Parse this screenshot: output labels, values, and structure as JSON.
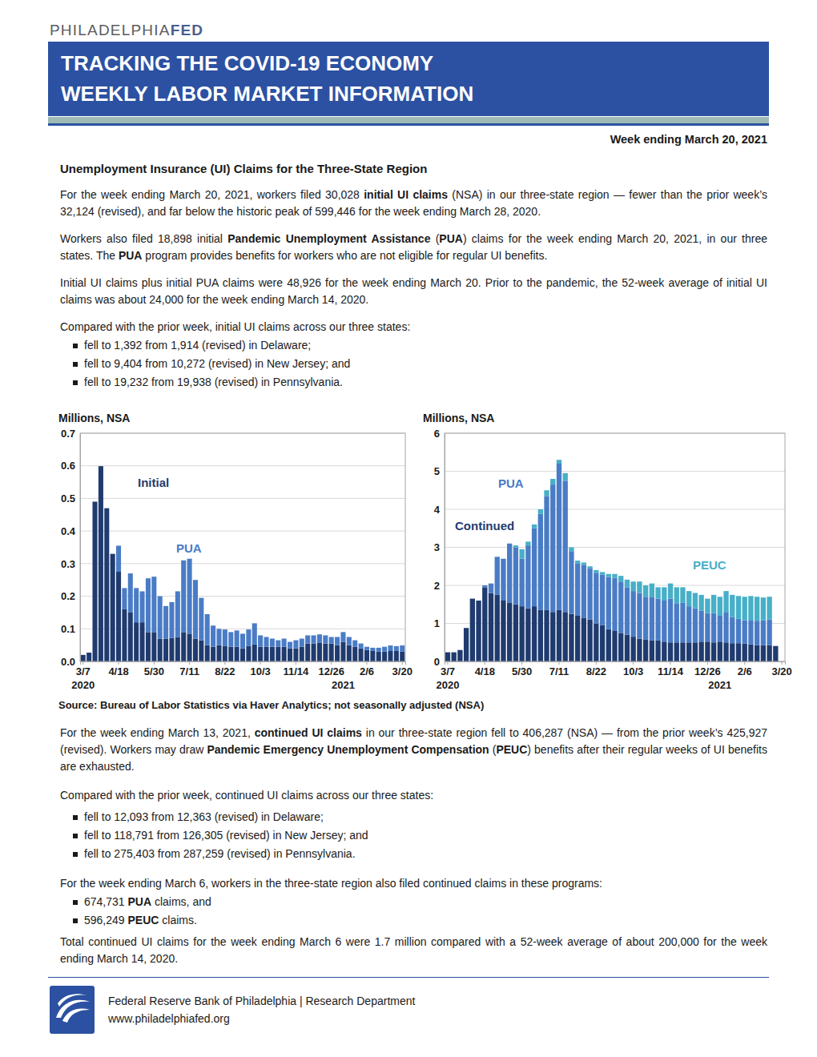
{
  "header": {
    "brand": [
      "PHILADELPHIA",
      "FED"
    ],
    "title_lines": [
      "TRACKING THE COVID-19 ECONOMY",
      "WEEKLY LABOR MARKET INFORMATION"
    ],
    "date": "Week ending March 20, 2021"
  },
  "heading": "Unemployment Insurance (UI) Claims for the Three-State Region",
  "content_top": [
    {
      "runs": [
        "For the week ending March 20, 2021, workers filed 30,028 ",
        {
          "text": "initial UI claims",
          "bold": true
        },
        " (NSA) in our three-state region — fewer than the prior week’s 32,124 (revised), and far below the historic peak of 599,446 for the week ending March 28, 2020."
      ]
    },
    {
      "runs": [
        "Workers also filed 18,898 initial ",
        {
          "text": "Pandemic Unemployment Assistance",
          "bold": true
        },
        " (",
        {
          "text": "PUA",
          "bold": true
        },
        ") claims for the week ending March 20, 2021, in our three states. The ",
        {
          "text": "PUA",
          "bold": true
        },
        " program provides benefits for workers who are not eligible for regular UI benefits."
      ]
    },
    {
      "runs": [
        "Initial UI claims plus initial PUA claims were 48,926 for the week ending March 20. Prior to the pandemic, the 52-week average of initial UI claims was about 24,000 for the week ending March 14, 2020."
      ]
    },
    {
      "runs": [
        "Compared with the prior week, initial UI claims across our three states:"
      ]
    },
    {
      "bullets": [
        [
          "fell to 1,392 from 1,914 (revised) in Delaware;"
        ],
        [
          "fell to 9,404 from 10,272 (revised) in New Jersey; and"
        ],
        [
          "fell to 19,232 from 19,938 (revised) in Pennsylvania."
        ]
      ]
    }
  ],
  "chart_data": [
    {
      "type": "bar",
      "stacked": true,
      "grid": true,
      "y_label": "Millions, NSA",
      "categories": [
        "3/7",
        null,
        null,
        null,
        null,
        null,
        "4/18",
        null,
        null,
        null,
        null,
        null,
        "5/30",
        null,
        null,
        null,
        null,
        null,
        "7/11",
        null,
        null,
        null,
        null,
        null,
        "8/22",
        null,
        null,
        null,
        null,
        null,
        "10/3",
        null,
        null,
        null,
        null,
        null,
        "11/14",
        null,
        null,
        null,
        null,
        null,
        "12/26",
        null,
        null,
        null,
        null,
        null,
        "2/6",
        null,
        null,
        null,
        null,
        null,
        "3/20"
      ],
      "annotations": [
        {
          "x": 0,
          "text": "2020"
        },
        {
          "x": 44,
          "text": "2021"
        }
      ],
      "ylim": [
        0,
        0.7
      ],
      "yticks": [
        {
          "value": 0,
          "label": "0.0"
        },
        0.1,
        0.2,
        0.3,
        0.4,
        0.5,
        0.6,
        0.7
      ],
      "series": [
        {
          "name": "Initial",
          "color": "#1f3b6f",
          "values": [
            0.02,
            0.027,
            0.49,
            0.599,
            0.47,
            0.33,
            0.275,
            0.16,
            0.15,
            0.12,
            0.12,
            0.09,
            0.09,
            0.07,
            0.07,
            0.072,
            0.075,
            0.09,
            0.085,
            0.07,
            0.065,
            0.05,
            0.045,
            0.05,
            0.048,
            0.045,
            0.045,
            0.04,
            0.048,
            0.052,
            0.045,
            0.045,
            0.045,
            0.045,
            0.045,
            0.04,
            0.04,
            0.045,
            0.055,
            0.055,
            0.058,
            0.055,
            0.055,
            0.05,
            0.06,
            0.05,
            0.045,
            0.04,
            0.035,
            0.032,
            0.03,
            0.03,
            0.032,
            0.032,
            0.03
          ]
        },
        {
          "name": "PUA",
          "color": "#4a7cc6",
          "values": [
            null,
            null,
            null,
            null,
            null,
            null,
            0.08,
            0.065,
            0.12,
            0.105,
            0.095,
            0.165,
            0.17,
            0.13,
            0.1,
            0.11,
            0.14,
            0.22,
            0.23,
            0.18,
            0.13,
            0.095,
            0.065,
            0.05,
            0.05,
            0.045,
            0.05,
            0.045,
            0.05,
            0.065,
            0.035,
            0.03,
            0.025,
            0.02,
            0.025,
            0.02,
            0.025,
            0.025,
            0.025,
            0.025,
            0.025,
            0.025,
            0.02,
            0.025,
            0.03,
            0.025,
            0.02,
            0.015,
            0.01,
            0.01,
            0.012,
            0.015,
            0.017,
            0.015,
            0.019
          ]
        }
      ]
    },
    {
      "type": "bar",
      "stacked": true,
      "grid": true,
      "y_label": "Millions, NSA",
      "categories": [
        "3/7",
        null,
        null,
        null,
        null,
        null,
        "4/18",
        null,
        null,
        null,
        null,
        null,
        "5/30",
        null,
        null,
        null,
        null,
        null,
        "7/11",
        null,
        null,
        null,
        null,
        null,
        "8/22",
        null,
        null,
        null,
        null,
        null,
        "10/3",
        null,
        null,
        null,
        null,
        null,
        "11/14",
        null,
        null,
        null,
        null,
        null,
        "12/26",
        null,
        null,
        null,
        null,
        null,
        "2/6",
        null,
        null,
        null,
        null,
        null,
        "3/20"
      ],
      "annotations": [
        {
          "x": 0,
          "text": "2020"
        },
        {
          "x": 44,
          "text": "2021"
        }
      ],
      "ylim": [
        0,
        6
      ],
      "yticks": [
        0,
        1,
        2,
        3,
        4,
        5,
        6
      ],
      "series": [
        {
          "name": "Continued",
          "color": "#1f3b6f",
          "values": [
            0.24,
            0.24,
            0.3,
            0.88,
            1.65,
            1.6,
            1.95,
            1.8,
            1.75,
            1.6,
            1.55,
            1.5,
            1.45,
            1.4,
            1.45,
            1.35,
            1.35,
            1.3,
            1.35,
            1.3,
            1.25,
            1.2,
            1.15,
            1.1,
            1,
            0.95,
            0.85,
            0.8,
            0.75,
            0.7,
            0.65,
            0.6,
            0.57,
            0.55,
            0.55,
            0.52,
            0.5,
            0.5,
            0.5,
            0.5,
            0.5,
            0.52,
            0.52,
            0.5,
            0.52,
            0.5,
            0.48,
            0.48,
            0.47,
            0.45,
            0.43,
            0.43,
            0.43,
            0.406,
            null
          ]
        },
        {
          "name": "PUA",
          "color": "#4a7cc6",
          "values": [
            null,
            null,
            null,
            null,
            null,
            null,
            0.05,
            0.25,
            1,
            1.1,
            1.55,
            1.5,
            1.25,
            1.65,
            2.05,
            2.53,
            3,
            3.35,
            3.85,
            3.45,
            1.65,
            1.37,
            1.39,
            1.34,
            1.33,
            1.33,
            1.37,
            1.4,
            1.35,
            1.25,
            1.2,
            1.2,
            1.13,
            1.15,
            1.1,
            1.08,
            1.15,
            1.03,
            1.05,
            0.95,
            0.9,
            0.81,
            0.75,
            0.77,
            0.68,
            0.8,
            0.69,
            0.64,
            0.61,
            0.64,
            0.64,
            0.65,
            0.675,
            null,
            null
          ]
        },
        {
          "name": "PEUC",
          "color": "#47afc7",
          "values": [
            null,
            null,
            null,
            null,
            null,
            null,
            null,
            null,
            null,
            null,
            null,
            0.05,
            0.25,
            0.1,
            0.1,
            0.12,
            0.15,
            0.15,
            0.1,
            0.2,
            0.1,
            0.08,
            0.06,
            0.06,
            0.07,
            0.07,
            0.08,
            0.1,
            0.15,
            0.2,
            0.25,
            0.3,
            0.3,
            0.35,
            0.3,
            0.35,
            0.4,
            0.42,
            0.4,
            0.4,
            0.4,
            0.42,
            0.38,
            0.48,
            0.5,
            0.55,
            0.58,
            0.6,
            0.62,
            0.63,
            0.63,
            0.6,
            0.596,
            null,
            null
          ]
        }
      ]
    }
  ],
  "source": "Source: Bureau of Labor Statistics via Haver Analytics; not seasonally adjusted (NSA)",
  "content_bottom": [
    {
      "runs": [
        "For the week ending March 13, 2021, ",
        {
          "text": "continued UI claims",
          "bold": true
        },
        " in our three-state region fell to 406,287 (NSA) — from the prior week’s 425,927 (revised). Workers may draw ",
        {
          "text": "Pandemic Emergency Unemployment Compensation",
          "bold": true
        },
        " (",
        {
          "text": "PEUC",
          "bold": true
        },
        ") benefits after their regular weeks of UI benefits are exhausted."
      ]
    },
    {
      "runs": [
        "Compared with the prior week, continued UI claims across our three states:"
      ]
    },
    {
      "bullets": [
        [
          "fell to 12,093 from 12,363 (revised) in Delaware;"
        ],
        [
          "fell to 118,791 from 126,305 (revised) in New Jersey; and"
        ],
        [
          "fell to 275,403 from 287,259 (revised) in Pennsylvania."
        ]
      ]
    },
    {
      "runs": [
        "For the week ending March 6, workers in the three-state region also filed continued claims in these programs:"
      ]
    },
    {
      "bullets": [
        [
          "674,731 ",
          {
            "text": "PUA",
            "bold": true
          },
          " claims, and"
        ],
        [
          "596,249 ",
          {
            "text": "PEUC",
            "bold": true
          },
          " claims."
        ]
      ]
    },
    {
      "runs": [
        "Total continued UI claims for the week ending March 6 were 1.7 million compared with a 52-week average of about 200,000 for the week ending March 14, 2020."
      ]
    }
  ],
  "footer": {
    "lines": [
      "Federal Reserve Bank of Philadelphia | Research Department",
      "www.philadelphiafed.org"
    ]
  }
}
